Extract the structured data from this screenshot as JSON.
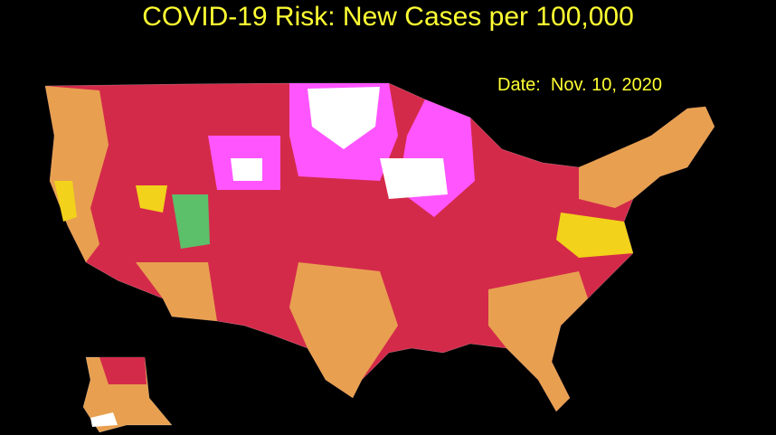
{
  "header": {
    "title": "COVID-19 Risk: New Cases per 100,000",
    "date": "Date:  Nov. 10, 2020"
  }
}
